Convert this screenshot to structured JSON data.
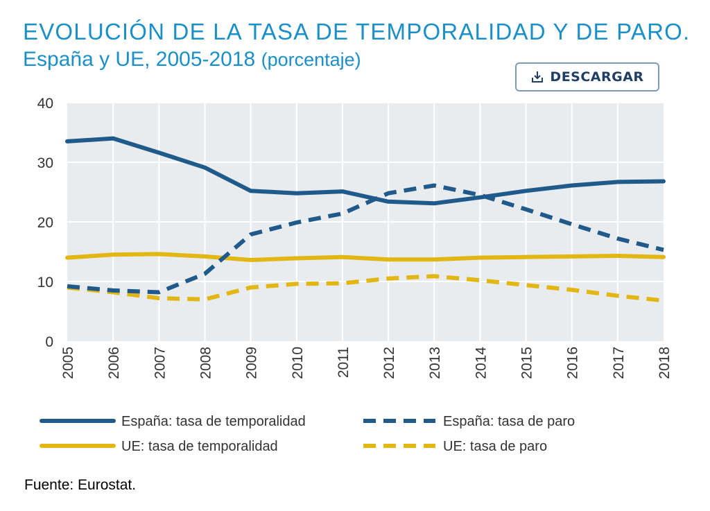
{
  "title": {
    "line1": "EVOLUCIÓN DE LA TASA DE TEMPORALIDAD Y DE PARO.",
    "line2_main": "España y UE, 2005-2018",
    "line2_unit": "(porcentaje)"
  },
  "download_button": {
    "label": "DESCARGAR",
    "icon": "download-icon"
  },
  "source": "Fuente: Eurostat.",
  "colors": {
    "spain": "#1f5a8a",
    "eu": "#e3b713",
    "plot_bg": "#e9ecef",
    "grid": "#ffffff",
    "title": "#1a8fc9"
  },
  "chart_data": {
    "type": "line",
    "title": "EVOLUCIÓN DE LA TASA DE TEMPORALIDAD Y DE PARO. España y UE, 2005-2018 (porcentaje)",
    "xlabel": "",
    "ylabel": "",
    "x": [
      "2005",
      "2006",
      "2007",
      "2008",
      "2009",
      "2010",
      "2011",
      "2012",
      "2013",
      "2014",
      "2015",
      "2016",
      "2017",
      "2018"
    ],
    "ylim": [
      0,
      40
    ],
    "yticks": [
      "0",
      "10",
      "20",
      "30",
      "40"
    ],
    "grid": true,
    "legend_position": "bottom",
    "series": [
      {
        "name": "España: tasa de temporalidad",
        "color": "#1f5a8a",
        "dashed": false,
        "values": [
          33.5,
          34.0,
          31.6,
          29.1,
          25.2,
          24.8,
          25.1,
          23.4,
          23.1,
          24.1,
          25.2,
          26.1,
          26.7,
          26.8
        ]
      },
      {
        "name": "España: tasa de paro",
        "color": "#1f5a8a",
        "dashed": true,
        "values": [
          9.2,
          8.5,
          8.2,
          11.3,
          17.9,
          19.9,
          21.4,
          24.8,
          26.1,
          24.5,
          22.1,
          19.6,
          17.2,
          15.3
        ]
      },
      {
        "name": "UE: tasa de temporalidad",
        "color": "#e3b713",
        "dashed": false,
        "values": [
          14.0,
          14.5,
          14.6,
          14.2,
          13.6,
          13.9,
          14.1,
          13.7,
          13.7,
          14.0,
          14.1,
          14.2,
          14.3,
          14.1
        ]
      },
      {
        "name": "UE: tasa de paro",
        "color": "#e3b713",
        "dashed": true,
        "values": [
          9.0,
          8.2,
          7.2,
          7.0,
          9.0,
          9.6,
          9.7,
          10.5,
          10.9,
          10.2,
          9.4,
          8.6,
          7.6,
          6.8
        ]
      }
    ]
  }
}
